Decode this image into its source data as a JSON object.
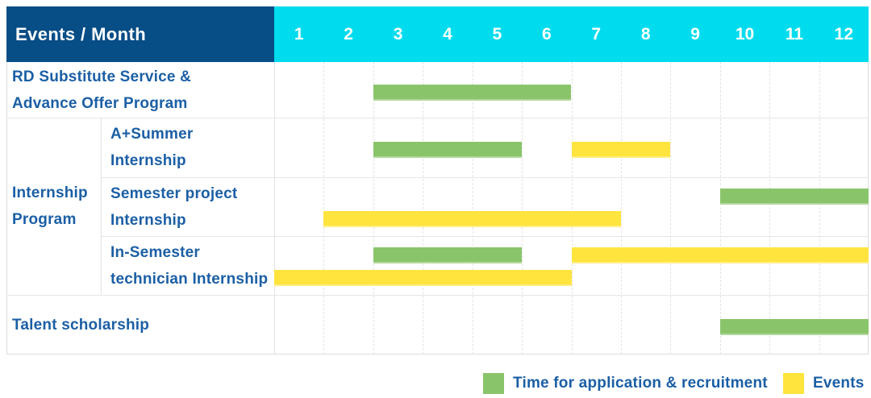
{
  "header": {
    "corner_label": "Events / Month"
  },
  "colors": {
    "header_blue": "#074d86",
    "month_cyan": "#00dcee",
    "text_blue": "#1b5fa5",
    "recruitment_green": "#8ac46a",
    "event_yellow": "#ffe43e"
  },
  "legend": {
    "items": [
      {
        "key": "recruitment",
        "label": "Time for application & recruitment",
        "color": "#8ac46a"
      },
      {
        "key": "event",
        "label": "Events",
        "color": "#ffe43e"
      }
    ]
  },
  "chart_data": {
    "type": "bar",
    "subtype": "gantt-schedule",
    "title": "Events / Month",
    "x_unit": "month",
    "x_range": [
      1,
      12
    ],
    "months": [
      "1",
      "2",
      "3",
      "4",
      "5",
      "6",
      "7",
      "8",
      "9",
      "10",
      "11",
      "12"
    ],
    "group_label": "Internship Program",
    "group_label_lines": [
      "Internship",
      "Program"
    ],
    "legend_entries": [
      "Time for application & recruitment",
      "Events"
    ],
    "rows": [
      {
        "group": "",
        "label": "RD Substitute Service & Advance Offer Program",
        "label_lines": [
          "RD Substitute Service &",
          "Advance Offer Program"
        ],
        "bars": [
          {
            "type": "recruitment",
            "start_month": 3,
            "end_month": 6,
            "line": "center"
          }
        ]
      },
      {
        "group": "Internship Program",
        "label": "A+Summer Internship",
        "label_lines": [
          "A+Summer",
          "Internship"
        ],
        "bars": [
          {
            "type": "recruitment",
            "start_month": 3,
            "end_month": 5,
            "line": "center"
          },
          {
            "type": "event",
            "start_month": 7,
            "end_month": 8,
            "line": "center"
          }
        ]
      },
      {
        "group": "Internship Program",
        "label": "Semester project Internship",
        "label_lines": [
          "Semester project",
          "Internship"
        ],
        "bars": [
          {
            "type": "recruitment",
            "start_month": 10,
            "end_month": 12,
            "line": "upper"
          },
          {
            "type": "event",
            "start_month": 2,
            "end_month": 7,
            "line": "lower"
          }
        ]
      },
      {
        "group": "Internship Program",
        "label": "In-Semester technician Internship",
        "label_lines": [
          "In-Semester",
          "technician Internship"
        ],
        "bars": [
          {
            "type": "recruitment",
            "start_month": 3,
            "end_month": 5,
            "line": "upper"
          },
          {
            "type": "event",
            "start_month": 7,
            "end_month": 12,
            "line": "upper"
          },
          {
            "type": "event",
            "start_month": 1,
            "end_month": 6,
            "line": "lower"
          }
        ]
      },
      {
        "group": "",
        "label": "Talent scholarship",
        "label_lines": [
          "Talent scholarship"
        ],
        "bars": [
          {
            "type": "recruitment",
            "start_month": 10,
            "end_month": 12,
            "line": "center"
          }
        ]
      }
    ]
  }
}
